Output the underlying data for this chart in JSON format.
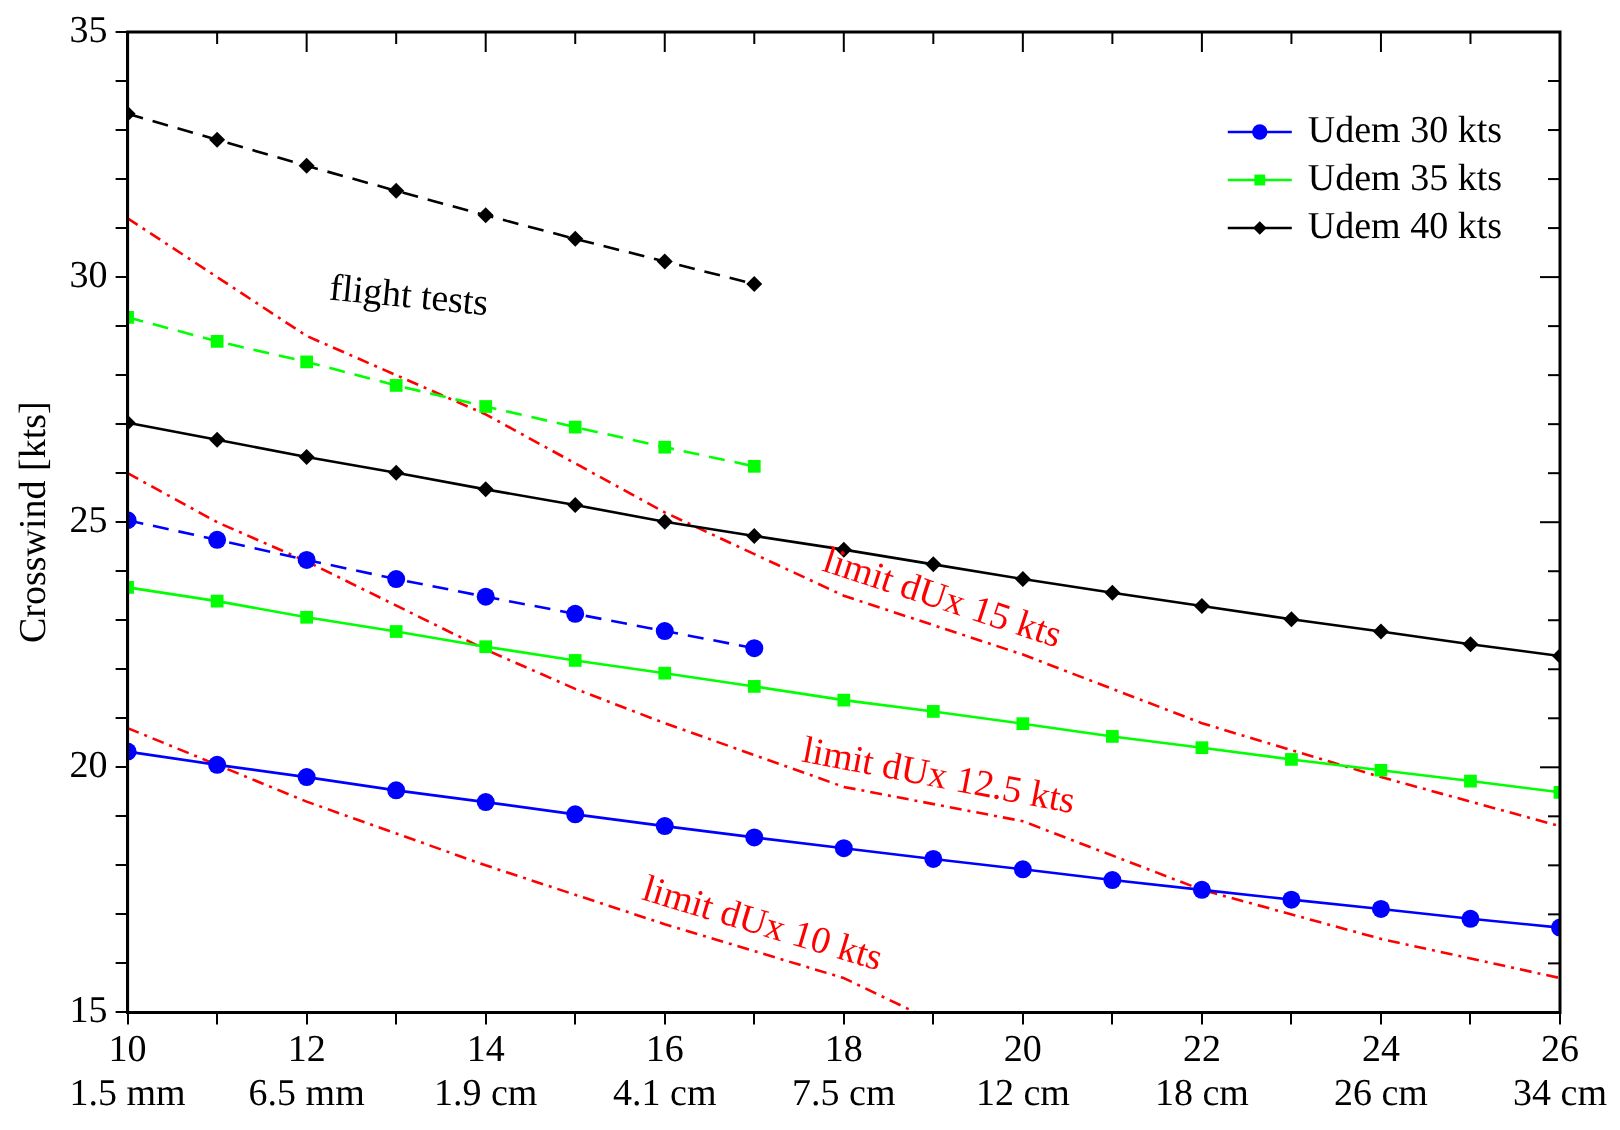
{
  "chart_data": {
    "type": "line",
    "ylabel": "Crosswind [kts]",
    "xlim": [
      10,
      26
    ],
    "ylim": [
      15,
      35
    ],
    "xticks": [
      10,
      {
        "value": 11,
        "label": null
      },
      12,
      {
        "value": 13,
        "label": null
      },
      14,
      {
        "value": 15,
        "label": null
      },
      16,
      {
        "value": 17,
        "label": null
      },
      18,
      {
        "value": 19,
        "label": null
      },
      20,
      {
        "value": 21,
        "label": null
      },
      22,
      {
        "value": 23,
        "label": null
      },
      24,
      {
        "value": 25,
        "label": null
      },
      26
    ],
    "yticks": [
      15,
      {
        "value": 16,
        "label": null
      },
      {
        "value": 17,
        "label": null
      },
      {
        "value": 18,
        "label": null
      },
      {
        "value": 19,
        "label": null
      },
      20,
      {
        "value": 21,
        "label": null
      },
      {
        "value": 22,
        "label": null
      },
      {
        "value": 23,
        "label": null
      },
      {
        "value": 24,
        "label": null
      },
      25,
      {
        "value": 26,
        "label": null
      },
      {
        "value": 27,
        "label": null
      },
      {
        "value": 28,
        "label": null
      },
      {
        "value": 29,
        "label": null
      },
      30,
      {
        "value": 31,
        "label": null
      },
      {
        "value": 32,
        "label": null
      },
      {
        "value": 33,
        "label": null
      },
      {
        "value": 34,
        "label": null
      },
      35
    ],
    "grid": false,
    "legend": "top right",
    "annotations": [
      "flight tests",
      "1.5 mm",
      "6.5 mm",
      "1.9 cm",
      "4.1 cm",
      "7.5 cm",
      "12 cm",
      "18 cm",
      "26 cm",
      "34 cm"
    ],
    "series": [
      {
        "name": "Udem 30 kts",
        "color": "#0000ff",
        "marker": "circle",
        "line_style": "solid",
        "x": [
          10,
          11,
          12,
          13,
          14,
          15,
          16,
          17,
          18,
          19,
          20,
          21,
          22,
          23,
          24,
          25,
          26
        ],
        "values": [
          20.32,
          20.05,
          19.8,
          19.53,
          19.29,
          19.04,
          18.8,
          18.57,
          18.35,
          18.13,
          17.92,
          17.7,
          17.5,
          17.3,
          17.11,
          16.91,
          16.73
        ]
      },
      {
        "name": "Udem 35 kts",
        "color": "#00ff00",
        "marker": "square",
        "line_style": "solid",
        "x": [
          10,
          11,
          12,
          13,
          14,
          15,
          16,
          17,
          18,
          19,
          20,
          21,
          22,
          23,
          24,
          25,
          26
        ],
        "values": [
          23.67,
          23.39,
          23.06,
          22.77,
          22.46,
          22.18,
          21.92,
          21.65,
          21.37,
          21.14,
          20.89,
          20.63,
          20.4,
          20.16,
          19.94,
          19.72,
          19.49
        ]
      },
      {
        "name": "Udem 40 kts",
        "color": "#000000",
        "marker": "diamond",
        "line_style": "solid",
        "x": [
          10,
          11,
          12,
          13,
          14,
          15,
          16,
          17,
          18,
          19,
          20,
          21,
          22,
          23,
          24,
          25,
          26
        ],
        "values": [
          27.03,
          26.68,
          26.33,
          26.01,
          25.67,
          25.35,
          25.01,
          24.72,
          24.44,
          24.14,
          23.84,
          23.56,
          23.29,
          23.02,
          22.77,
          22.51,
          22.27
        ]
      },
      {
        "color": "#0000ff",
        "marker": "circle",
        "line_style": "dashed",
        "x": [
          10,
          11,
          12,
          13,
          14,
          15,
          16,
          17
        ],
        "values": [
          25.04,
          24.64,
          24.23,
          23.84,
          23.48,
          23.13,
          22.78,
          22.43
        ]
      },
      {
        "color": "#00ff00",
        "marker": "square",
        "line_style": "dashed",
        "x": [
          10,
          11,
          12,
          13,
          14,
          15,
          16,
          17
        ],
        "values": [
          29.18,
          28.69,
          28.27,
          27.79,
          27.36,
          26.94,
          26.53,
          26.14
        ]
      },
      {
        "color": "#000000",
        "marker": "diamond",
        "line_style": "dashed",
        "x": [
          10,
          11,
          12,
          13,
          14,
          15,
          16,
          17
        ],
        "values": [
          33.33,
          32.8,
          32.27,
          31.76,
          31.26,
          30.78,
          30.32,
          29.86
        ]
      },
      {
        "name": "limit dUx 15 kts",
        "color": "#ff0000",
        "marker": "none",
        "line_style": "dashdot",
        "x": [
          10,
          12,
          14,
          16,
          18,
          20,
          22,
          24,
          26
        ],
        "values": [
          31.2,
          28.8,
          27.2,
          25.2,
          23.5,
          22.3,
          20.9,
          19.8,
          18.8
        ]
      },
      {
        "name": "limit dUx 12.5 kts",
        "color": "#ff0000",
        "marker": "none",
        "line_style": "dashdot",
        "x": [
          10,
          11,
          12,
          14,
          15,
          16,
          18,
          20,
          22,
          24,
          26
        ],
        "values": [
          26.0,
          25.0,
          24.2,
          22.4,
          21.6,
          20.9,
          19.6,
          18.9,
          17.5,
          16.5,
          15.7
        ]
      },
      {
        "name": "limit dUx 10 kts",
        "color": "#ff0000",
        "marker": "none",
        "line_style": "dashdot",
        "x": [
          10,
          12,
          14,
          16,
          18,
          18.8
        ],
        "values": [
          20.8,
          19.3,
          18.0,
          16.8,
          15.7,
          15.0
        ]
      }
    ]
  }
}
